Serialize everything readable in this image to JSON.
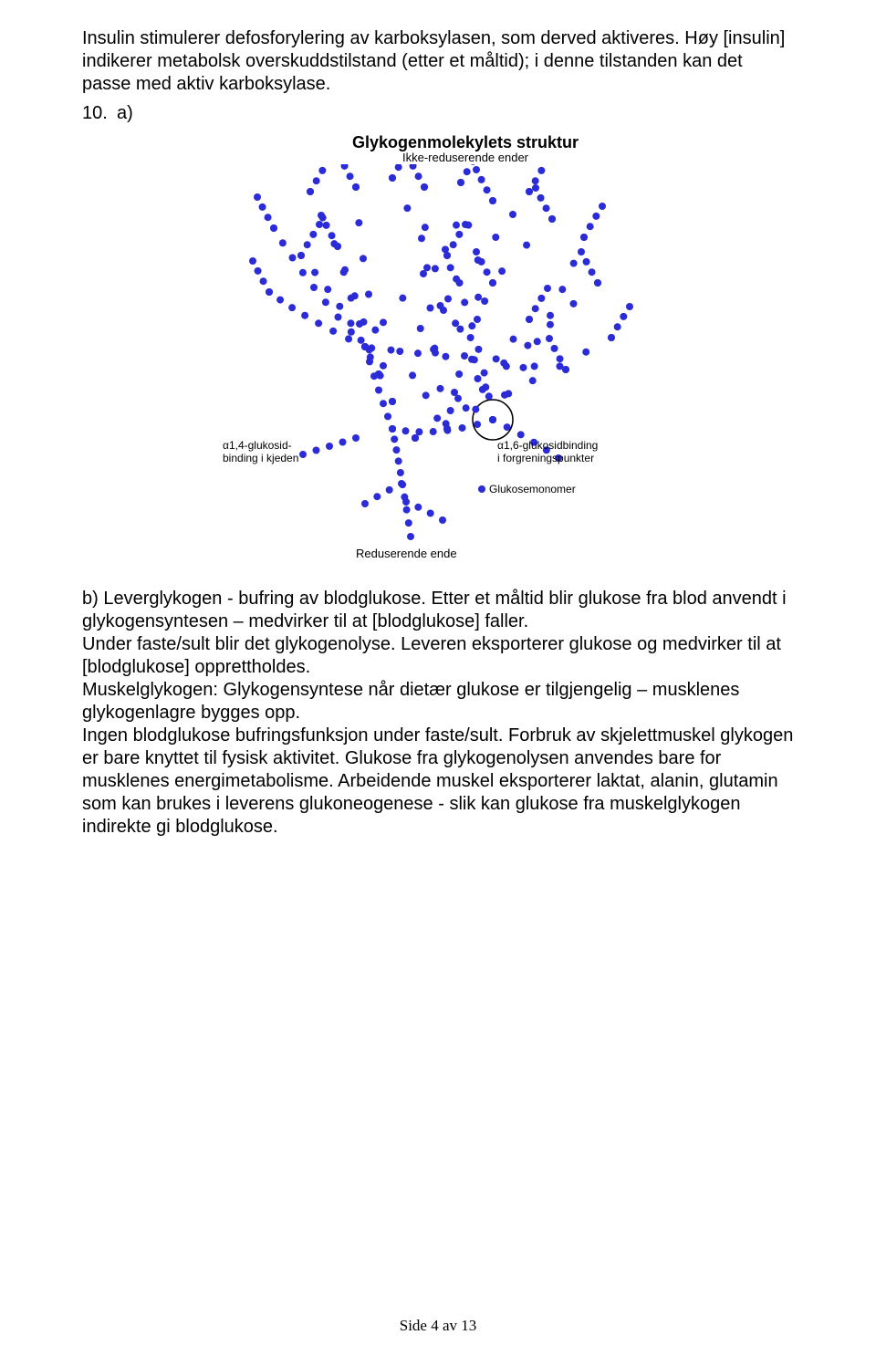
{
  "intro": "Insulin stimulerer defosforylering av karboksylasen, som derved aktiveres.  Høy [insulin] indikerer metabolsk overskuddstilstand (etter et måltid); i denne tilstanden kan det passe med aktiv karboksylase.",
  "question_number": "10.",
  "question_sub": "a)",
  "diagram": {
    "title": "Glykogenmolekylets struktur",
    "subtitle": "Ikke-reduserende ender",
    "label_14_a": "α1,4-glukosid-",
    "label_14_b": "binding i kjeden",
    "label_16_a": "α1,6-glukosidbinding",
    "label_16_b": "i forgreningspunkter",
    "label_monomer": "Glukosemonomer",
    "label_reducing": "Reduserende ende",
    "dot_color": "#2b2bd7",
    "dot_radius": 4,
    "circle_stroke": "#000000",
    "background": "#ffffff"
  },
  "body_b": "b) Leverglykogen - bufring av blodglukose. Etter et måltid blir glukose fra blod anvendt i glykogensyntesen – medvirker til at [blodglukose] faller.\nUnder faste/sult blir det glykogenolyse. Leveren eksporterer glukose og medvirker til at [blodglukose] opprettholdes.\nMuskelglykogen: Glykogensyntese når dietær glukose er tilgjengelig – musklenes glykogenlagre bygges opp.\nIngen blodglukose bufringsfunksjon under faste/sult.  Forbruk av skjelettmuskel glykogen er bare knyttet til fysisk aktivitet. Glukose fra glykogenolysen anvendes bare for musklenes energimetabolisme. Arbeidende muskel eksporterer laktat, alanin, glutamin som kan brukes i leverens glukoneogenese - slik kan glukose fra muskelglykogen indirekte gi blodglukose.",
  "footer": "Side 4 av 13"
}
